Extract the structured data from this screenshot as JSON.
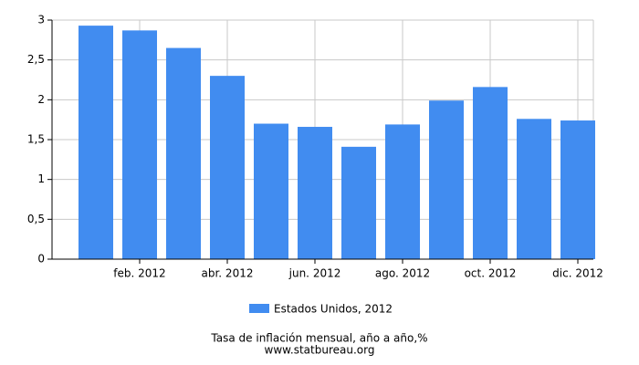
{
  "chart_data": {
    "type": "bar",
    "title": "Tasa de inflación mensual, año a año,%",
    "source": "www.statbureau.org",
    "categories": [
      null,
      "feb. 2012",
      null,
      "abr. 2012",
      null,
      "jun. 2012",
      null,
      "ago. 2012",
      null,
      "oct. 2012",
      null,
      "dic. 2012"
    ],
    "series": [
      {
        "name": "Estados Unidos, 2012",
        "color": "#418cf0",
        "values": [
          2.93,
          2.87,
          2.65,
          2.3,
          1.7,
          1.66,
          1.41,
          1.69,
          1.99,
          2.16,
          1.76,
          1.74
        ]
      }
    ],
    "ylim": [
      0,
      3
    ],
    "yticks": [
      0,
      {
        "value": 0.5,
        "label": "0,5"
      },
      1,
      {
        "value": 1.5,
        "label": "1,5"
      },
      2,
      {
        "value": 2.5,
        "label": "2,5"
      },
      3
    ],
    "grid": true
  }
}
